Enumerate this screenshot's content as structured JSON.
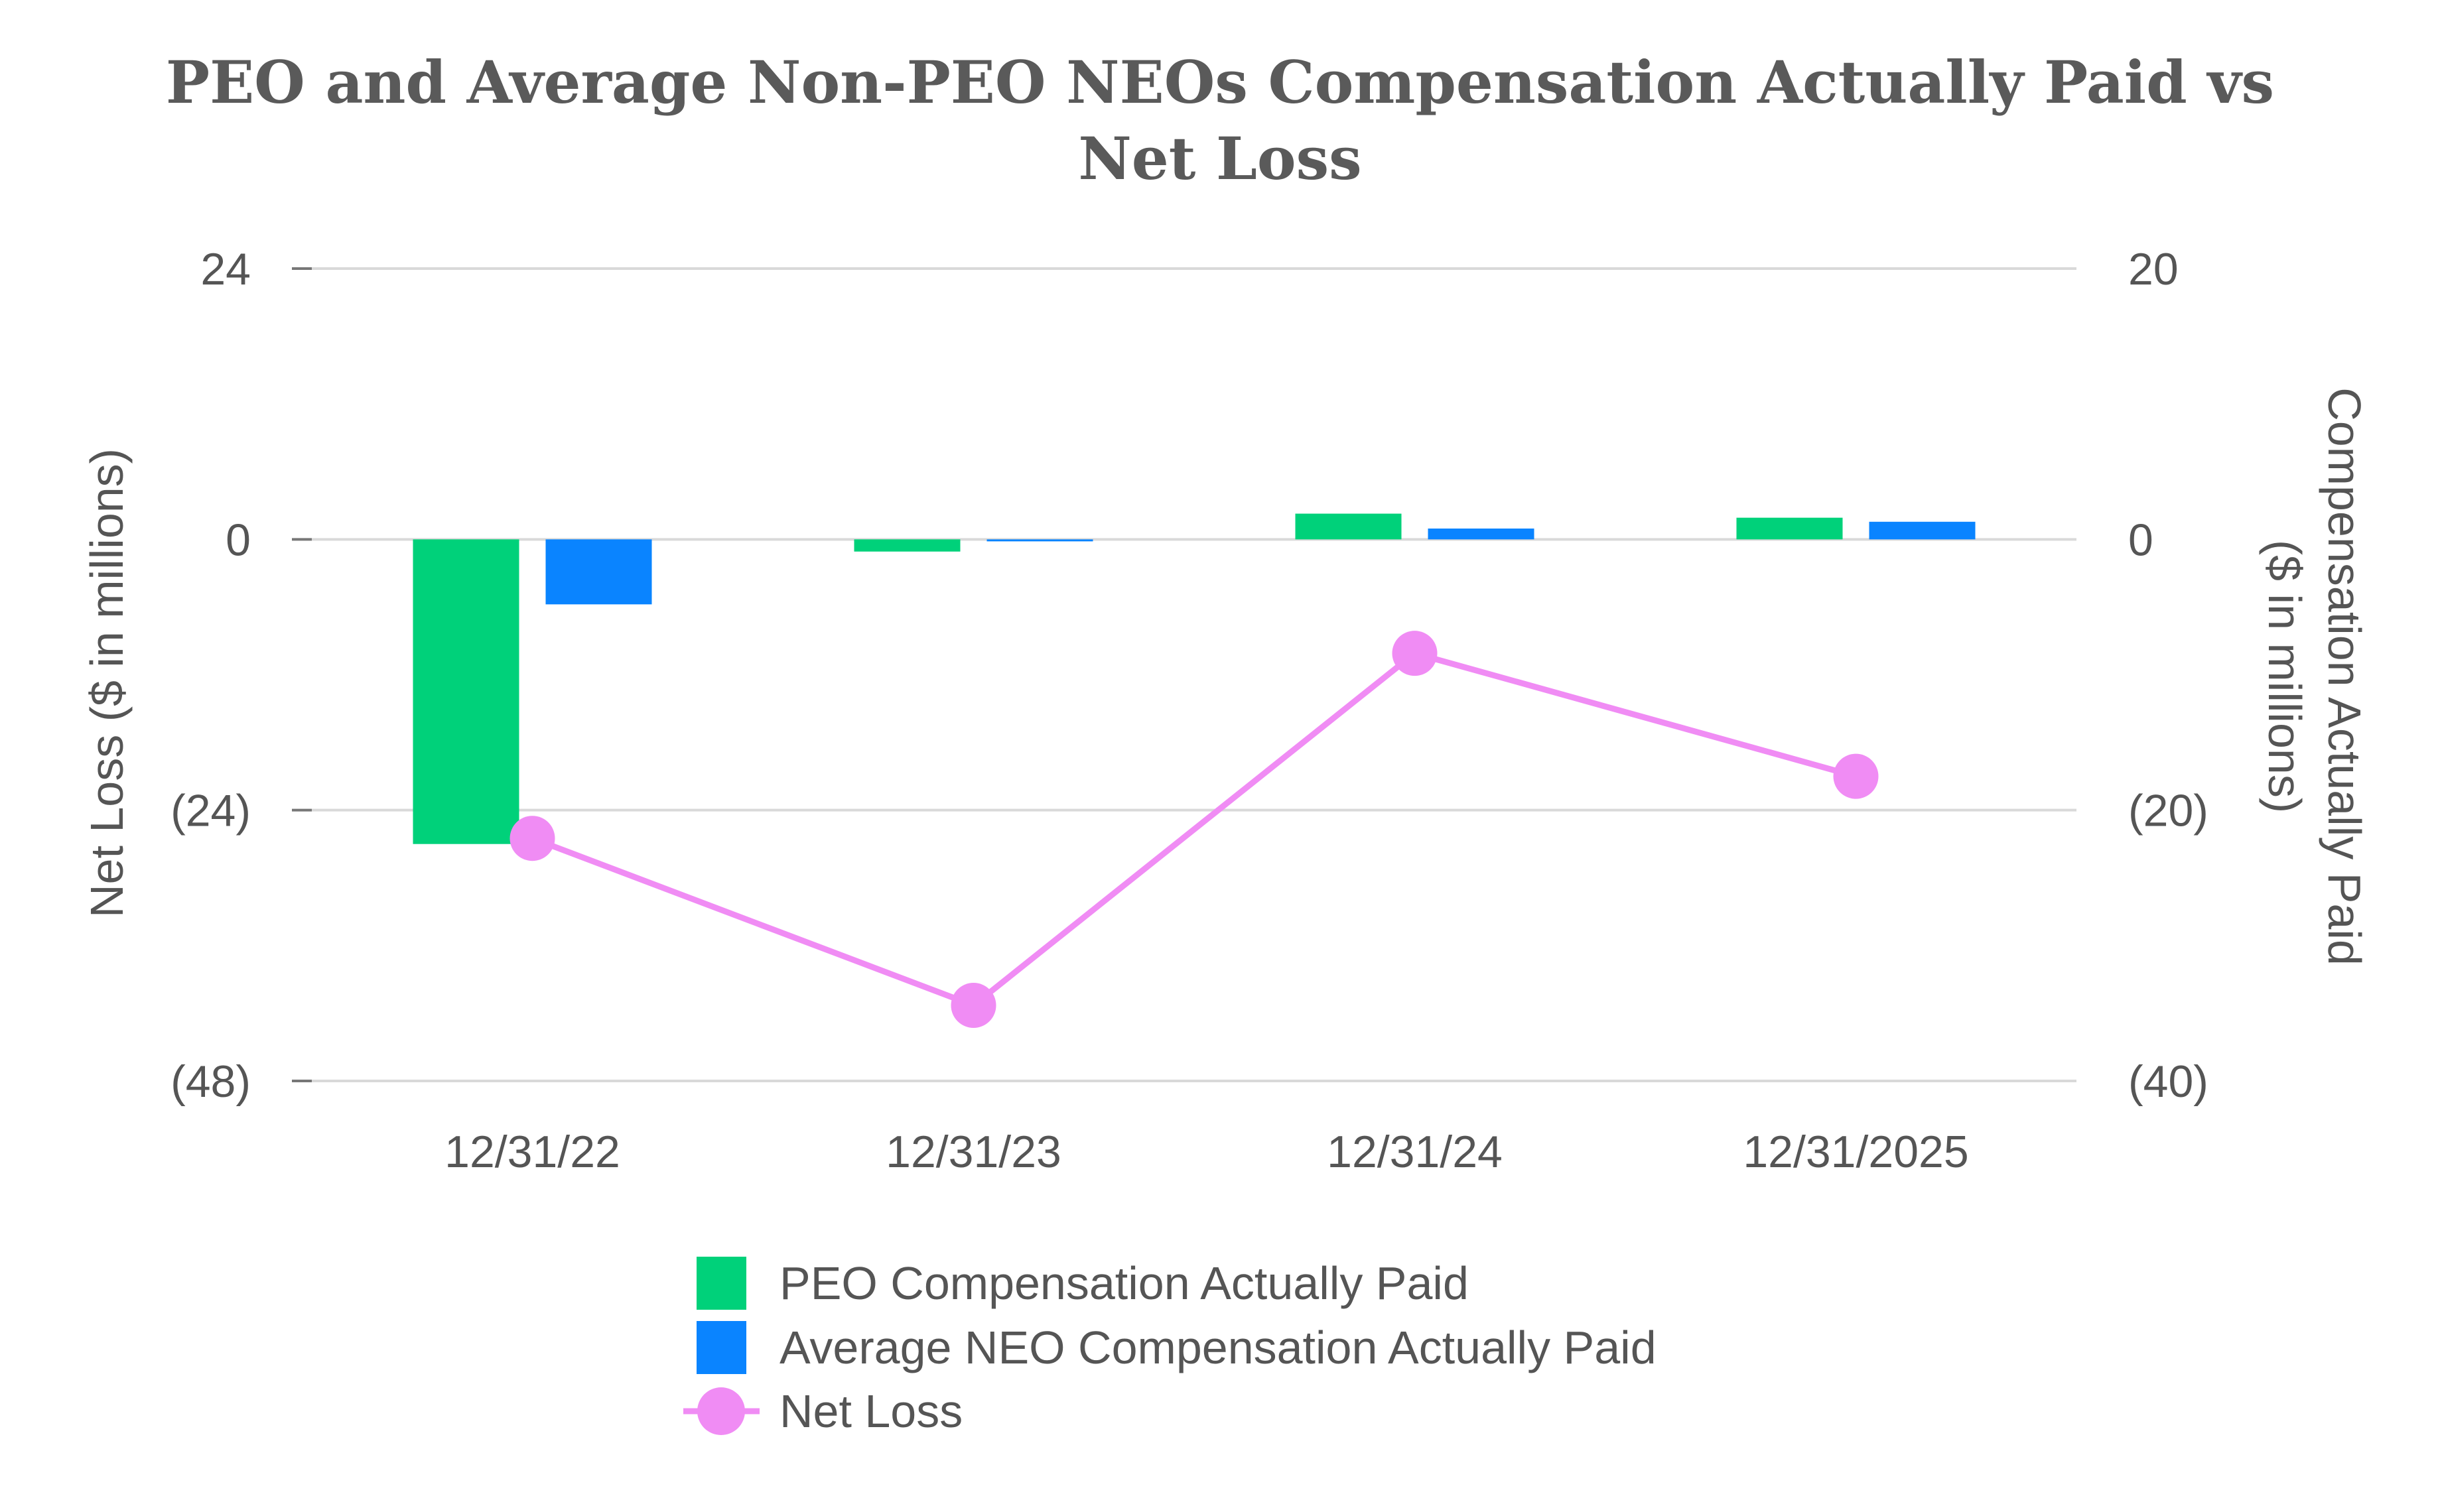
{
  "chart_data": {
    "type": "bar",
    "title": "PEO and Average Non-PEO NEOs Compensation Actually Paid vs Net Loss",
    "title_lines": [
      "PEO and Average Non-PEO NEOs Compensation Actually Paid vs",
      "Net Loss"
    ],
    "categories": [
      "12/31/22",
      "12/31/23",
      "12/31/24",
      "12/31/2025"
    ],
    "series": [
      {
        "name": "PEO Compensation Actually Paid",
        "type": "bar",
        "axis": "right",
        "color": "#00d17a",
        "values": [
          -22.5,
          -0.9,
          1.9,
          1.6
        ]
      },
      {
        "name": "Average NEO Compensation Actually Paid",
        "type": "bar",
        "axis": "right",
        "color": "#0a84ff",
        "values": [
          -4.8,
          -0.1,
          0.8,
          1.3
        ]
      },
      {
        "name": "Net Loss",
        "type": "line",
        "axis": "left",
        "color": "#f08cf4",
        "values": [
          -26.5,
          -41.3,
          -10.1,
          -21.0
        ]
      }
    ],
    "left_axis": {
      "label": "Net Loss ($ in millions)",
      "ylim": [
        -48,
        24
      ],
      "ticks": [
        24,
        0,
        -24,
        -48
      ],
      "tick_labels": [
        "24",
        "0",
        "(24)",
        "(48)"
      ]
    },
    "right_axis": {
      "label_lines": [
        "Compensation Actually Paid",
        "($ in millions)"
      ],
      "ylim": [
        -40,
        20
      ],
      "ticks": [
        20,
        0,
        -20,
        -40
      ],
      "tick_labels": [
        "20",
        "0",
        "(20)",
        "(40)"
      ]
    },
    "grid": true,
    "legend_position": "bottom-center"
  }
}
